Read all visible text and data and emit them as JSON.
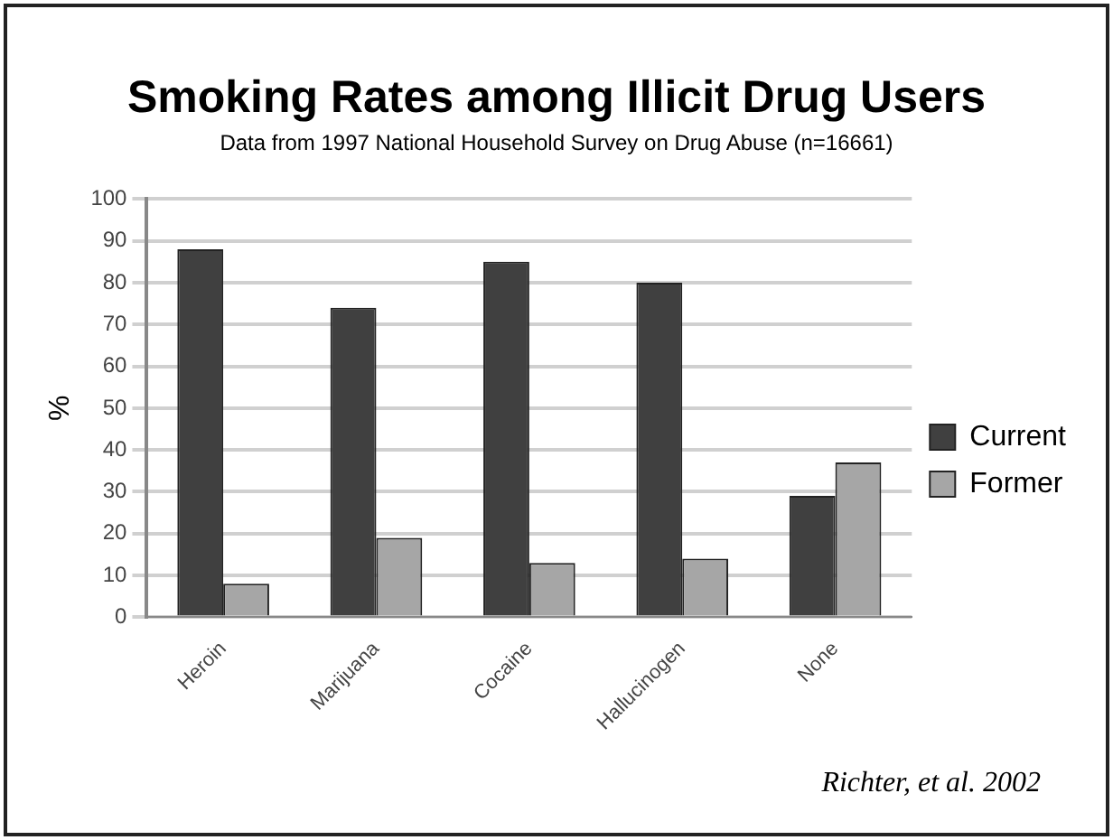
{
  "chart_data": {
    "type": "bar",
    "title": "Smoking Rates among Illicit Drug Users",
    "subtitle": "Data from 1997 National Household Survey on Drug Abuse (n=16661)",
    "ylabel": "%",
    "categories": [
      "Heroin",
      "Marijuana",
      "Cocaine",
      "Hallucinogen",
      "None"
    ],
    "series": [
      {
        "name": "Current",
        "color": "#404040",
        "values": [
          88,
          74,
          85,
          80,
          29
        ]
      },
      {
        "name": "Former",
        "color": "#a6a6a6",
        "values": [
          8,
          19,
          13,
          14,
          37
        ]
      }
    ],
    "ylim": [
      0,
      100
    ],
    "yticks": [
      0,
      10,
      20,
      30,
      40,
      50,
      60,
      70,
      80,
      90,
      100
    ],
    "grid": "y",
    "legend": "right",
    "annotations": [
      "Richter,  et al. 2002"
    ]
  }
}
